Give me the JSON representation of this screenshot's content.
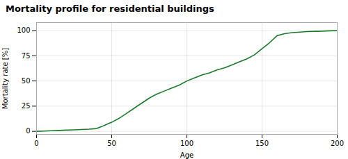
{
  "chart_data": {
    "type": "line",
    "title": "Mortality profile for residential buildings",
    "xlabel": "Age",
    "ylabel": "Mortality rate [%]",
    "x": [
      0,
      5,
      10,
      15,
      20,
      25,
      30,
      35,
      40,
      43,
      46,
      50,
      55,
      60,
      65,
      70,
      75,
      80,
      85,
      90,
      95,
      100,
      105,
      110,
      115,
      120,
      125,
      130,
      135,
      140,
      145,
      150,
      155,
      160,
      165,
      170,
      175,
      180,
      185,
      190,
      195,
      200
    ],
    "values": [
      0,
      0.3,
      0.6,
      0.9,
      1.2,
      1.5,
      1.8,
      2.2,
      2.8,
      4.5,
      6.5,
      9.0,
      13,
      18,
      23,
      28,
      33,
      37,
      40,
      43,
      46,
      50,
      53,
      56,
      58,
      61,
      63,
      66,
      69,
      72,
      76,
      82,
      88,
      95,
      97,
      98,
      98.5,
      99,
      99.3,
      99.5,
      99.8,
      100
    ],
    "color": "#1a7a2a",
    "xlim": [
      0,
      200
    ],
    "ylim": [
      -3,
      108
    ],
    "xticks": [
      0,
      50,
      100,
      150,
      200
    ],
    "yticks": [
      0,
      25,
      50,
      75,
      100
    ],
    "grid": true
  }
}
